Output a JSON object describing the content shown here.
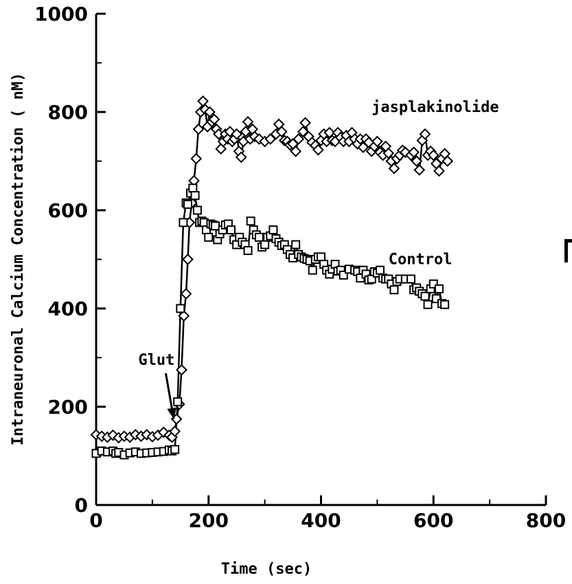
{
  "chart_data": {
    "type": "line",
    "xlabel": "Time (sec)",
    "ylabel": "Intraneuronal Calcium Concentration ( nM)",
    "xlim": [
      0,
      800
    ],
    "ylim": [
      0,
      1000
    ],
    "xticks": [
      0,
      200,
      400,
      600,
      800
    ],
    "yticks": [
      0,
      200,
      400,
      600,
      800,
      1000
    ],
    "x_tick_labels": [
      "0",
      "200",
      "400",
      "600",
      "800"
    ],
    "y_tick_labels": [
      "0",
      "200",
      "400",
      "600",
      "800",
      "1000"
    ],
    "grid": false,
    "series": [
      {
        "name": "jasplakinolide",
        "marker": "diamond",
        "points": [
          [
            0,
            143
          ],
          [
            10,
            140
          ],
          [
            20,
            138
          ],
          [
            30,
            142
          ],
          [
            40,
            137
          ],
          [
            50,
            140
          ],
          [
            60,
            138
          ],
          [
            70,
            143
          ],
          [
            80,
            140
          ],
          [
            90,
            143
          ],
          [
            100,
            139
          ],
          [
            110,
            142
          ],
          [
            120,
            148
          ],
          [
            130,
            142
          ],
          [
            135,
            138
          ],
          [
            140,
            150
          ],
          [
            143,
            175
          ],
          [
            148,
            205
          ],
          [
            152,
            275
          ],
          [
            156,
            385
          ],
          [
            160,
            430
          ],
          [
            163,
            500
          ],
          [
            166,
            575
          ],
          [
            170,
            615
          ],
          [
            174,
            660
          ],
          [
            178,
            705
          ],
          [
            182,
            765
          ],
          [
            186,
            800
          ],
          [
            190,
            822
          ],
          [
            194,
            805
          ],
          [
            198,
            770
          ],
          [
            202,
            800
          ],
          [
            206,
            780
          ],
          [
            210,
            785
          ],
          [
            214,
            765
          ],
          [
            218,
            755
          ],
          [
            222,
            725
          ],
          [
            226,
            740
          ],
          [
            230,
            755
          ],
          [
            234,
            745
          ],
          [
            238,
            760
          ],
          [
            242,
            740
          ],
          [
            246,
            745
          ],
          [
            250,
            755
          ],
          [
            254,
            720
          ],
          [
            258,
            708
          ],
          [
            262,
            740
          ],
          [
            266,
            760
          ],
          [
            270,
            780
          ],
          [
            274,
            745
          ],
          [
            278,
            765
          ],
          [
            282,
            750
          ],
          [
            290,
            745
          ],
          [
            300,
            740
          ],
          [
            310,
            745
          ],
          [
            320,
            755
          ],
          [
            325,
            775
          ],
          [
            330,
            760
          ],
          [
            335,
            742
          ],
          [
            340,
            740
          ],
          [
            345,
            733
          ],
          [
            350,
            735
          ],
          [
            355,
            720
          ],
          [
            360,
            745
          ],
          [
            368,
            760
          ],
          [
            372,
            778
          ],
          [
            378,
            750
          ],
          [
            384,
            738
          ],
          [
            390,
            732
          ],
          [
            395,
            723
          ],
          [
            400,
            742
          ],
          [
            405,
            755
          ],
          [
            410,
            740
          ],
          [
            415,
            758
          ],
          [
            420,
            742
          ],
          [
            425,
            740
          ],
          [
            430,
            758
          ],
          [
            435,
            748
          ],
          [
            440,
            740
          ],
          [
            445,
            752
          ],
          [
            450,
            740
          ],
          [
            455,
            758
          ],
          [
            460,
            745
          ],
          [
            465,
            735
          ],
          [
            470,
            745
          ],
          [
            475,
            728
          ],
          [
            480,
            745
          ],
          [
            485,
            738
          ],
          [
            490,
            720
          ],
          [
            495,
            730
          ],
          [
            500,
            740
          ],
          [
            505,
            718
          ],
          [
            510,
            712
          ],
          [
            515,
            730
          ],
          [
            520,
            716
          ],
          [
            525,
            700
          ],
          [
            530,
            685
          ],
          [
            535,
            705
          ],
          [
            540,
            712
          ],
          [
            545,
            722
          ],
          [
            550,
            718
          ],
          [
            560,
            712
          ],
          [
            565,
            718
          ],
          [
            570,
            700
          ],
          [
            575,
            682
          ],
          [
            580,
            742
          ],
          [
            585,
            755
          ],
          [
            590,
            712
          ],
          [
            595,
            720
          ],
          [
            600,
            712
          ],
          [
            605,
            695
          ],
          [
            610,
            680
          ],
          [
            615,
            705
          ],
          [
            620,
            715
          ],
          [
            625,
            700
          ]
        ]
      },
      {
        "name": "Control",
        "marker": "square",
        "points": [
          [
            0,
            105
          ],
          [
            10,
            110
          ],
          [
            20,
            108
          ],
          [
            30,
            110
          ],
          [
            35,
            105
          ],
          [
            40,
            107
          ],
          [
            50,
            102
          ],
          [
            60,
            106
          ],
          [
            70,
            108
          ],
          [
            80,
            105
          ],
          [
            90,
            106
          ],
          [
            100,
            107
          ],
          [
            110,
            108
          ],
          [
            120,
            109
          ],
          [
            130,
            112
          ],
          [
            135,
            110
          ],
          [
            140,
            113
          ],
          [
            145,
            210
          ],
          [
            150,
            400
          ],
          [
            155,
            575
          ],
          [
            160,
            615
          ],
          [
            163,
            612
          ],
          [
            168,
            635
          ],
          [
            172,
            645
          ],
          [
            176,
            630
          ],
          [
            180,
            600
          ],
          [
            184,
            575
          ],
          [
            188,
            578
          ],
          [
            192,
            575
          ],
          [
            196,
            560
          ],
          [
            200,
            545
          ],
          [
            204,
            572
          ],
          [
            208,
            570
          ],
          [
            212,
            568
          ],
          [
            216,
            540
          ],
          [
            220,
            552
          ],
          [
            225,
            560
          ],
          [
            230,
            570
          ],
          [
            235,
            572
          ],
          [
            240,
            560
          ],
          [
            245,
            540
          ],
          [
            250,
            530
          ],
          [
            255,
            545
          ],
          [
            260,
            535
          ],
          [
            265,
            530
          ],
          [
            270,
            518
          ],
          [
            275,
            578
          ],
          [
            280,
            560
          ],
          [
            285,
            550
          ],
          [
            290,
            545
          ],
          [
            295,
            525
          ],
          [
            300,
            530
          ],
          [
            305,
            545
          ],
          [
            310,
            548
          ],
          [
            315,
            560
          ],
          [
            320,
            542
          ],
          [
            325,
            535
          ],
          [
            330,
            528
          ],
          [
            335,
            530
          ],
          [
            340,
            520
          ],
          [
            345,
            510
          ],
          [
            350,
            503
          ],
          [
            355,
            530
          ],
          [
            360,
            510
          ],
          [
            365,
            505
          ],
          [
            370,
            502
          ],
          [
            375,
            500
          ],
          [
            380,
            497
          ],
          [
            385,
            478
          ],
          [
            390,
            500
          ],
          [
            395,
            505
          ],
          [
            400,
            505
          ],
          [
            405,
            490
          ],
          [
            410,
            478
          ],
          [
            415,
            470
          ],
          [
            420,
            480
          ],
          [
            425,
            490
          ],
          [
            430,
            476
          ],
          [
            435,
            478
          ],
          [
            440,
            468
          ],
          [
            450,
            480
          ],
          [
            460,
            478
          ],
          [
            465,
            475
          ],
          [
            470,
            462
          ],
          [
            475,
            478
          ],
          [
            480,
            470
          ],
          [
            485,
            458
          ],
          [
            490,
            460
          ],
          [
            495,
            475
          ],
          [
            500,
            472
          ],
          [
            505,
            478
          ],
          [
            510,
            462
          ],
          [
            515,
            460
          ],
          [
            520,
            460
          ],
          [
            525,
            450
          ],
          [
            530,
            438
          ],
          [
            535,
            455
          ],
          [
            540,
            460
          ],
          [
            550,
            460
          ],
          [
            560,
            460
          ],
          [
            565,
            438
          ],
          [
            570,
            442
          ],
          [
            575,
            435
          ],
          [
            580,
            430
          ],
          [
            585,
            425
          ],
          [
            590,
            408
          ],
          [
            595,
            440
          ],
          [
            600,
            450
          ],
          [
            605,
            420
          ],
          [
            610,
            440
          ],
          [
            615,
            410
          ],
          [
            620,
            408
          ]
        ]
      }
    ],
    "annotations": [
      {
        "text": "jasplakinolide",
        "x": 490,
        "y": 800
      },
      {
        "text": "Control",
        "x": 520,
        "y": 490
      },
      {
        "text": "Glut",
        "x": 75,
        "y": 285,
        "arrow_to": [
          138,
          175
        ]
      }
    ]
  }
}
